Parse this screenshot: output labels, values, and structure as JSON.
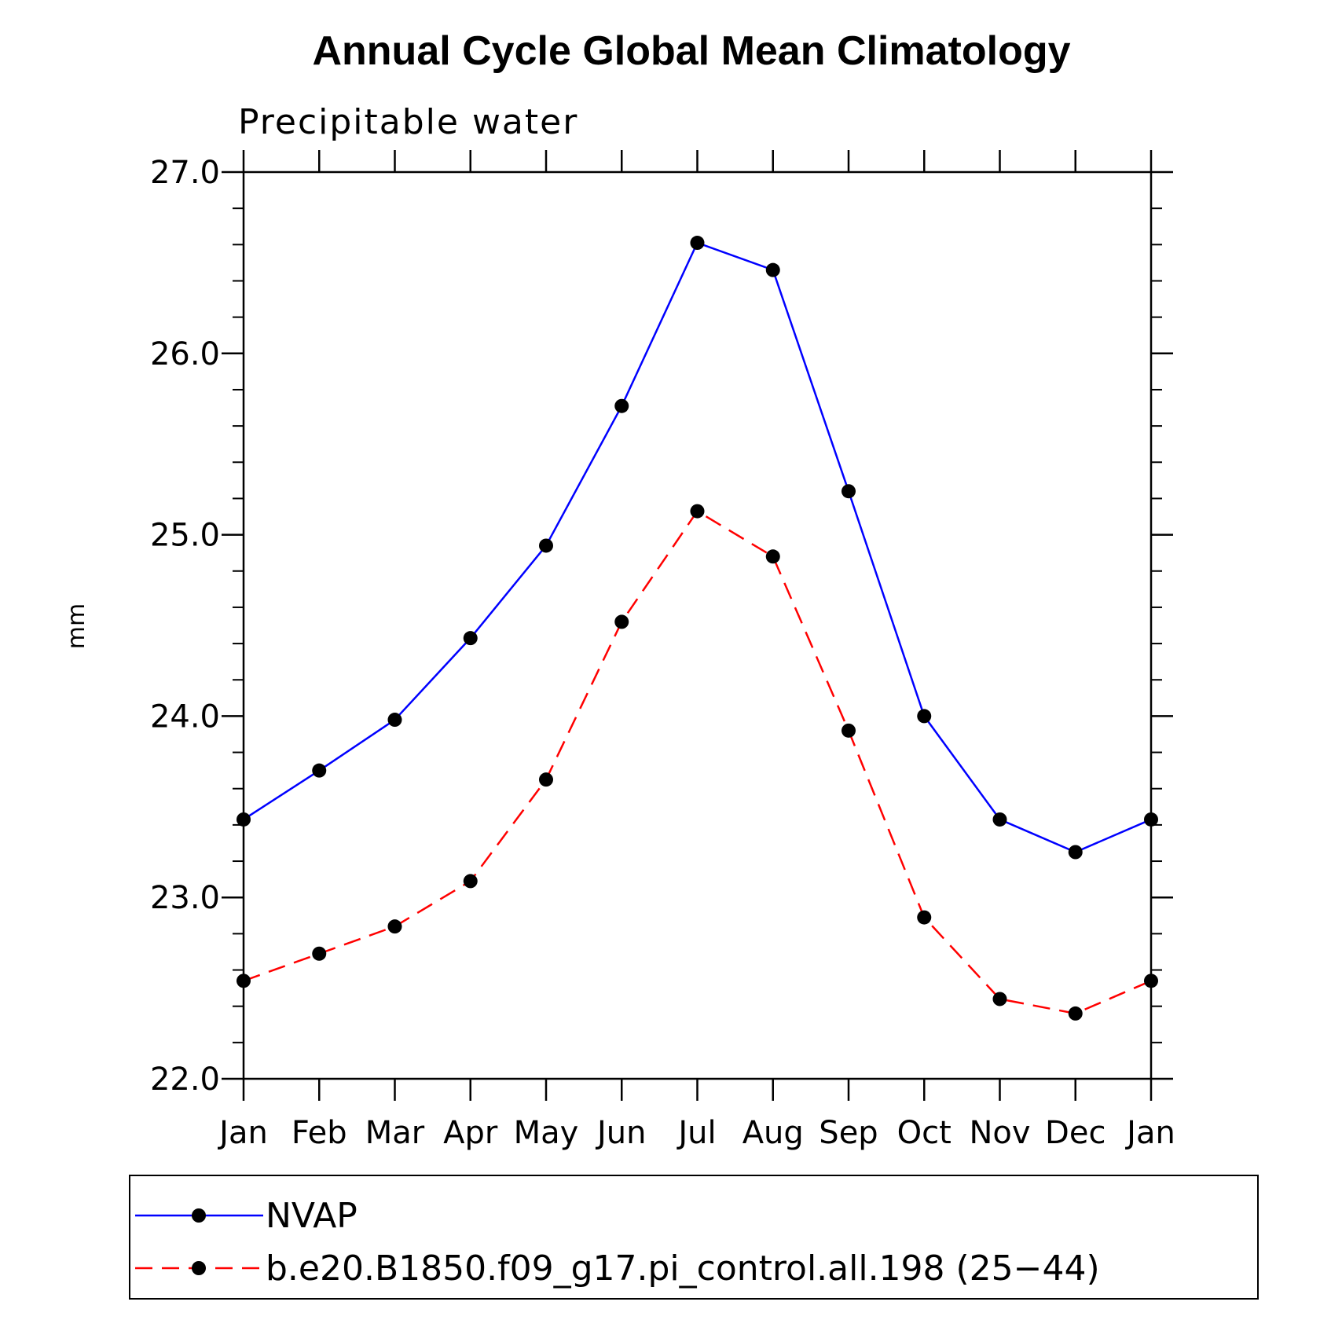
{
  "chart_data": {
    "type": "line",
    "title": "Annual Cycle Global Mean Climatology",
    "subtitle": "Precipitable water",
    "ylabel": "mm",
    "xlabel": "",
    "categories": [
      "Jan",
      "Feb",
      "Mar",
      "Apr",
      "May",
      "Jun",
      "Jul",
      "Aug",
      "Sep",
      "Oct",
      "Nov",
      "Dec",
      "Jan"
    ],
    "ylim": [
      22.0,
      27.0
    ],
    "yticks": [
      "22.0",
      "23.0",
      "24.0",
      "25.0",
      "26.0",
      "27.0"
    ],
    "grid": false,
    "legend_position": "bottom",
    "series": [
      {
        "name": "NVAP",
        "color": "#0000ff",
        "dash": "solid",
        "marker": "filled-circle",
        "values": [
          23.43,
          23.7,
          23.98,
          24.43,
          24.94,
          25.71,
          26.61,
          26.46,
          25.24,
          24.0,
          23.43,
          23.25,
          23.43
        ]
      },
      {
        "name": "b.e20.B1850.f09_g17.pi_control.all.198 (25−44)",
        "color": "#ff0000",
        "dash": "dashed",
        "marker": "filled-circle",
        "values": [
          22.54,
          22.69,
          22.84,
          23.09,
          23.65,
          24.52,
          25.13,
          24.88,
          23.92,
          22.89,
          22.44,
          22.36,
          22.54
        ]
      }
    ]
  }
}
